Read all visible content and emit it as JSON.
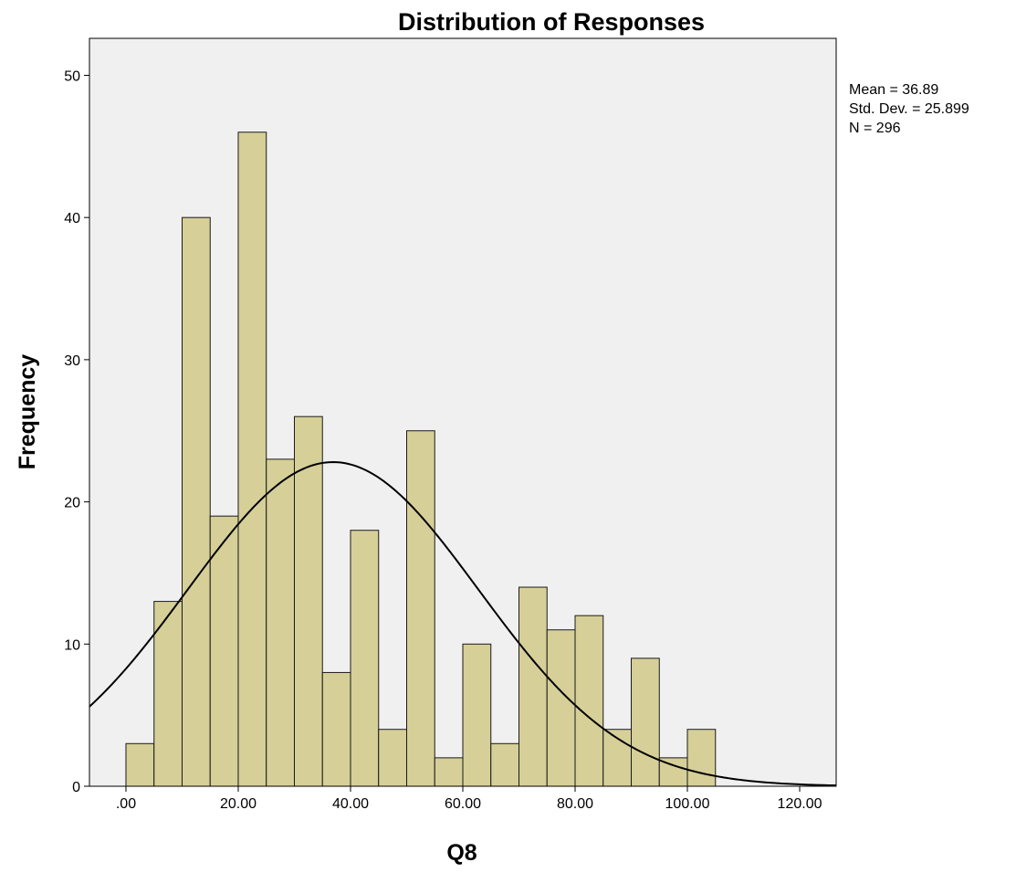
{
  "chart_data": {
    "type": "bar",
    "title": "Distribution of Responses",
    "xlabel": "Q8",
    "ylabel": "Frequency",
    "xlim": [
      -6.5,
      126.5
    ],
    "ylim": [
      0,
      52.6
    ],
    "grid": false,
    "x_ticks": [
      {
        "value": 0,
        "label": ".00"
      },
      {
        "value": 20,
        "label": "20.00"
      },
      {
        "value": 40,
        "label": "40.00"
      },
      {
        "value": 60,
        "label": "60.00"
      },
      {
        "value": 80,
        "label": "80.00"
      },
      {
        "value": 100,
        "label": "100.00"
      },
      {
        "value": 120,
        "label": "120.00"
      }
    ],
    "y_ticks": [
      {
        "value": 0,
        "label": "0"
      },
      {
        "value": 10,
        "label": "10"
      },
      {
        "value": 20,
        "label": "20"
      },
      {
        "value": 30,
        "label": "30"
      },
      {
        "value": 40,
        "label": "40"
      },
      {
        "value": 50,
        "label": "50"
      }
    ],
    "bins": [
      {
        "start": 0,
        "end": 5,
        "count": 3
      },
      {
        "start": 5,
        "end": 10,
        "count": 13
      },
      {
        "start": 10,
        "end": 15,
        "count": 40
      },
      {
        "start": 15,
        "end": 20,
        "count": 19
      },
      {
        "start": 20,
        "end": 25,
        "count": 46
      },
      {
        "start": 25,
        "end": 30,
        "count": 23
      },
      {
        "start": 30,
        "end": 35,
        "count": 26
      },
      {
        "start": 35,
        "end": 40,
        "count": 8
      },
      {
        "start": 40,
        "end": 45,
        "count": 18
      },
      {
        "start": 45,
        "end": 50,
        "count": 4
      },
      {
        "start": 50,
        "end": 55,
        "count": 25
      },
      {
        "start": 55,
        "end": 60,
        "count": 2
      },
      {
        "start": 60,
        "end": 65,
        "count": 10
      },
      {
        "start": 65,
        "end": 70,
        "count": 3
      },
      {
        "start": 70,
        "end": 75,
        "count": 14
      },
      {
        "start": 75,
        "end": 80,
        "count": 11
      },
      {
        "start": 80,
        "end": 85,
        "count": 12
      },
      {
        "start": 85,
        "end": 90,
        "count": 4
      },
      {
        "start": 90,
        "end": 95,
        "count": 9
      },
      {
        "start": 95,
        "end": 100,
        "count": 2
      },
      {
        "start": 100,
        "end": 105,
        "count": 4
      }
    ],
    "normal_curve": {
      "mean": 36.89,
      "std": 25.899,
      "n": 296,
      "bin_width": 5
    },
    "stats_lines": [
      "Mean = 36.89",
      "Std. Dev. = 25.899",
      "N = 296"
    ],
    "colors": {
      "bar_fill": "#d6cf98",
      "bar_stroke": "#1a1a1a",
      "plot_bg": "#f0f0f0",
      "curve": "#000000",
      "axis": "#000000"
    }
  }
}
